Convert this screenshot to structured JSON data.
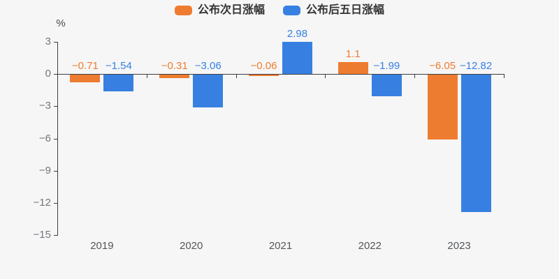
{
  "background_color": "#f6f6f6",
  "chart_data": {
    "type": "bar",
    "title": "",
    "unit_label": "%",
    "categories": [
      "2019",
      "2020",
      "2021",
      "2022",
      "2023"
    ],
    "series": [
      {
        "name": "公布次日涨幅",
        "color": "#ee7c30",
        "values": [
          -0.71,
          -0.31,
          -0.06,
          1.1,
          -6.05
        ],
        "value_labels": [
          "−0.71",
          "−0.31",
          "−0.06",
          "1.1",
          "−6.05"
        ]
      },
      {
        "name": "公布后五日涨幅",
        "color": "#3780e2",
        "values": [
          -1.54,
          -3.06,
          2.98,
          -1.99,
          -12.82
        ],
        "value_labels": [
          "−1.54",
          "−3.06",
          "2.98",
          "−1.99",
          "−12.82"
        ]
      }
    ],
    "ylim": [
      -15,
      3
    ],
    "ytick_interval": 3,
    "ytick_labels": [
      "3",
      "0",
      "−3",
      "−6",
      "−9",
      "−12",
      "−15"
    ],
    "grid": false,
    "legend_position": "top-center"
  },
  "colors": {
    "axis_line": "#3c3e42",
    "y_tick_label": "#73767c",
    "x_tick_label": "#54575b",
    "legend_text": "#333333"
  }
}
